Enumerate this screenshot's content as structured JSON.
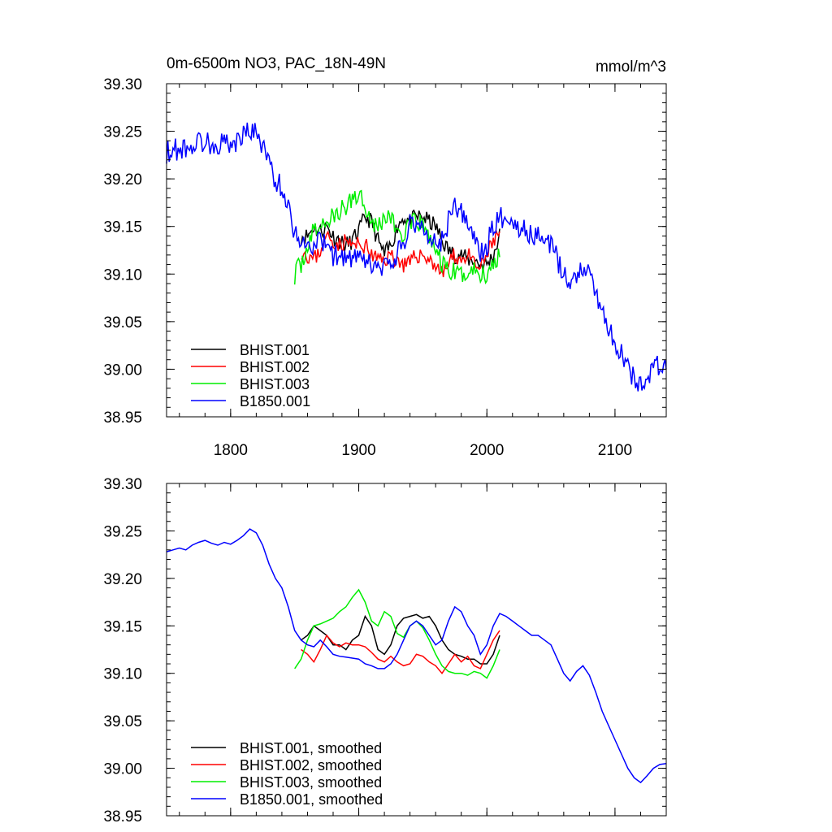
{
  "chart_data": [
    {
      "type": "line",
      "title": "0m-6500m NO3, PAC_18N-49N",
      "units_label": "mmol/m^3",
      "xlabel": "",
      "ylabel": "",
      "xlim": [
        1750,
        2140
      ],
      "ylim": [
        38.95,
        39.3
      ],
      "x_ticks": [
        1800,
        1900,
        2000,
        2100
      ],
      "x_tick_labels": [
        "1800",
        "1900",
        "2000",
        "2100"
      ],
      "y_ticks": [
        38.95,
        39.0,
        39.05,
        39.1,
        39.15,
        39.2,
        39.25,
        39.3
      ],
      "y_tick_labels": [
        "38.95",
        "39.00",
        "39.05",
        "39.10",
        "39.15",
        "39.20",
        "39.25",
        "39.30"
      ],
      "legend_position": "bottom-left",
      "series": [
        {
          "name": "BHIST.001",
          "color": "#000000",
          "noise": 0.009,
          "seed": 11,
          "x": [
            1855,
            1860,
            1865,
            1870,
            1875,
            1880,
            1885,
            1890,
            1895,
            1900,
            1905,
            1910,
            1915,
            1920,
            1925,
            1930,
            1935,
            1940,
            1945,
            1950,
            1955,
            1960,
            1965,
            1970,
            1975,
            1980,
            1985,
            1990,
            1995,
            2000,
            2005,
            2010
          ],
          "y": [
            39.14,
            39.14,
            39.15,
            39.145,
            39.15,
            39.14,
            39.135,
            39.13,
            39.135,
            39.145,
            39.16,
            39.155,
            39.135,
            39.12,
            39.13,
            39.15,
            39.16,
            39.155,
            39.16,
            39.16,
            39.155,
            39.15,
            39.135,
            39.125,
            39.12,
            39.12,
            39.115,
            39.115,
            39.11,
            39.11,
            39.12,
            39.14
          ]
        },
        {
          "name": "BHIST.002",
          "color": "#ff0000",
          "noise": 0.009,
          "seed": 23,
          "x": [
            1855,
            1860,
            1865,
            1870,
            1875,
            1880,
            1885,
            1890,
            1895,
            1900,
            1905,
            1910,
            1915,
            1920,
            1925,
            1930,
            1935,
            1940,
            1945,
            1950,
            1955,
            1960,
            1965,
            1970,
            1975,
            1980,
            1985,
            1990,
            1995,
            2000,
            2005,
            2010
          ],
          "y": [
            39.125,
            39.12,
            39.115,
            39.125,
            39.14,
            39.135,
            39.13,
            39.135,
            39.13,
            39.13,
            39.13,
            39.12,
            39.115,
            39.115,
            39.12,
            39.115,
            39.11,
            39.11,
            39.12,
            39.12,
            39.115,
            39.11,
            39.1,
            39.11,
            39.12,
            39.115,
            39.12,
            39.11,
            39.105,
            39.12,
            39.135,
            39.145
          ]
        },
        {
          "name": "BHIST.003",
          "color": "#00ee00",
          "noise": 0.011,
          "seed": 37,
          "x": [
            1850,
            1855,
            1860,
            1865,
            1870,
            1875,
            1880,
            1885,
            1890,
            1895,
            1900,
            1905,
            1910,
            1915,
            1920,
            1925,
            1930,
            1935,
            1940,
            1945,
            1950,
            1955,
            1960,
            1965,
            1970,
            1975,
            1980,
            1985,
            1990,
            1995,
            2000,
            2005,
            2010
          ],
          "y": [
            39.1,
            39.11,
            39.13,
            39.145,
            39.15,
            39.155,
            39.16,
            39.165,
            39.17,
            39.18,
            39.185,
            39.175,
            39.155,
            39.15,
            39.16,
            39.16,
            39.145,
            39.14,
            39.15,
            39.155,
            39.15,
            39.14,
            39.125,
            39.11,
            39.105,
            39.1,
            39.1,
            39.1,
            39.105,
            39.1,
            39.1,
            39.11,
            39.125
          ]
        },
        {
          "name": "B1850.001",
          "color": "#0000ff",
          "noise": 0.012,
          "seed": 53,
          "x": [
            1750,
            1755,
            1760,
            1765,
            1770,
            1775,
            1780,
            1785,
            1790,
            1795,
            1800,
            1805,
            1810,
            1815,
            1820,
            1825,
            1830,
            1835,
            1840,
            1845,
            1850,
            1855,
            1860,
            1865,
            1870,
            1875,
            1880,
            1885,
            1890,
            1895,
            1900,
            1905,
            1910,
            1915,
            1920,
            1925,
            1930,
            1935,
            1940,
            1945,
            1950,
            1955,
            1960,
            1965,
            1970,
            1975,
            1980,
            1985,
            1990,
            1995,
            2000,
            2005,
            2010,
            2015,
            2020,
            2025,
            2030,
            2035,
            2040,
            2045,
            2050,
            2055,
            2060,
            2065,
            2070,
            2075,
            2080,
            2085,
            2090,
            2095,
            2100,
            2105,
            2110,
            2115,
            2120,
            2125,
            2130,
            2135,
            2140
          ],
          "y": [
            39.228,
            39.23,
            39.232,
            39.233,
            39.235,
            39.238,
            39.24,
            39.237,
            39.236,
            39.238,
            39.236,
            39.24,
            39.245,
            39.252,
            39.248,
            39.235,
            39.215,
            39.2,
            39.19,
            39.17,
            39.145,
            39.135,
            39.13,
            39.13,
            39.135,
            39.128,
            39.12,
            39.118,
            39.117,
            39.116,
            39.115,
            39.11,
            39.11,
            39.105,
            39.105,
            39.11,
            39.12,
            39.135,
            39.15,
            39.155,
            39.15,
            39.14,
            39.13,
            39.135,
            39.155,
            39.17,
            39.165,
            39.15,
            39.14,
            39.12,
            39.13,
            39.15,
            39.16,
            39.16,
            39.155,
            39.15,
            39.145,
            39.14,
            39.14,
            39.135,
            39.13,
            39.115,
            39.1,
            39.09,
            39.1,
            39.11,
            39.1,
            39.08,
            39.06,
            39.045,
            39.03,
            39.015,
            39.0,
            38.99,
            38.985,
            38.99,
            39.0,
            39.005,
            39.0
          ]
        }
      ]
    },
    {
      "type": "line",
      "title": "",
      "xlabel": "",
      "ylabel": "",
      "xlim": [
        1750,
        2140
      ],
      "ylim": [
        38.95,
        39.3
      ],
      "x_ticks": [
        1800,
        1900,
        2000,
        2100
      ],
      "y_ticks": [
        38.95,
        39.0,
        39.05,
        39.1,
        39.15,
        39.2,
        39.25,
        39.3
      ],
      "y_tick_labels": [
        "38.95",
        "39.00",
        "39.05",
        "39.10",
        "39.15",
        "39.20",
        "39.25",
        "39.30"
      ],
      "legend_position": "bottom-left",
      "series": [
        {
          "name": "BHIST.001, smoothed",
          "color": "#000000",
          "x": [
            1855,
            1860,
            1865,
            1870,
            1875,
            1880,
            1885,
            1890,
            1895,
            1900,
            1905,
            1910,
            1915,
            1920,
            1925,
            1930,
            1935,
            1940,
            1945,
            1950,
            1955,
            1960,
            1965,
            1970,
            1975,
            1980,
            1985,
            1990,
            1995,
            2000,
            2005,
            2010
          ],
          "y": [
            39.135,
            39.14,
            39.15,
            39.145,
            39.14,
            39.13,
            39.13,
            39.125,
            39.135,
            39.14,
            39.16,
            39.15,
            39.125,
            39.12,
            39.13,
            39.15,
            39.158,
            39.16,
            39.162,
            39.158,
            39.16,
            39.15,
            39.135,
            39.125,
            39.12,
            39.118,
            39.115,
            39.115,
            39.11,
            39.11,
            39.12,
            39.14
          ]
        },
        {
          "name": "BHIST.002, smoothed",
          "color": "#ff0000",
          "x": [
            1855,
            1860,
            1865,
            1870,
            1875,
            1880,
            1885,
            1890,
            1895,
            1900,
            1905,
            1910,
            1915,
            1920,
            1925,
            1930,
            1935,
            1940,
            1945,
            1950,
            1955,
            1960,
            1965,
            1970,
            1975,
            1980,
            1985,
            1990,
            1995,
            2000,
            2005,
            2010
          ],
          "y": [
            39.125,
            39.12,
            39.112,
            39.125,
            39.14,
            39.132,
            39.128,
            39.132,
            39.13,
            39.13,
            39.128,
            39.122,
            39.115,
            39.112,
            39.118,
            39.112,
            39.108,
            39.11,
            39.12,
            39.118,
            39.112,
            39.108,
            39.1,
            39.11,
            39.12,
            39.112,
            39.118,
            39.108,
            39.105,
            39.12,
            39.135,
            39.145
          ]
        },
        {
          "name": "BHIST.003, smoothed",
          "color": "#00ee00",
          "x": [
            1850,
            1855,
            1860,
            1865,
            1870,
            1875,
            1880,
            1885,
            1890,
            1895,
            1900,
            1905,
            1910,
            1915,
            1920,
            1925,
            1930,
            1935,
            1940,
            1945,
            1950,
            1955,
            1960,
            1965,
            1970,
            1975,
            1980,
            1985,
            1990,
            1995,
            2000,
            2005,
            2010
          ],
          "y": [
            39.105,
            39.115,
            39.135,
            39.15,
            39.152,
            39.155,
            39.158,
            39.165,
            39.17,
            39.18,
            39.188,
            39.175,
            39.155,
            39.15,
            39.165,
            39.16,
            39.142,
            39.138,
            39.15,
            39.155,
            39.148,
            39.135,
            39.12,
            39.108,
            39.102,
            39.1,
            39.1,
            39.098,
            39.102,
            39.1,
            39.095,
            39.108,
            39.125
          ]
        },
        {
          "name": "B1850.001, smoothed",
          "color": "#0000ff",
          "x": [
            1750,
            1755,
            1760,
            1765,
            1770,
            1775,
            1780,
            1785,
            1790,
            1795,
            1800,
            1805,
            1810,
            1815,
            1820,
            1825,
            1830,
            1835,
            1840,
            1845,
            1850,
            1855,
            1860,
            1865,
            1870,
            1875,
            1880,
            1885,
            1890,
            1895,
            1900,
            1905,
            1910,
            1915,
            1920,
            1925,
            1930,
            1935,
            1940,
            1945,
            1950,
            1955,
            1960,
            1965,
            1970,
            1975,
            1980,
            1985,
            1990,
            1995,
            2000,
            2005,
            2010,
            2015,
            2020,
            2025,
            2030,
            2035,
            2040,
            2045,
            2050,
            2055,
            2060,
            2065,
            2070,
            2075,
            2080,
            2085,
            2090,
            2095,
            2100,
            2105,
            2110,
            2115,
            2120,
            2125,
            2130,
            2135,
            2140
          ],
          "y": [
            39.228,
            39.23,
            39.232,
            39.23,
            39.235,
            39.238,
            39.24,
            39.237,
            39.235,
            39.238,
            39.236,
            39.24,
            39.245,
            39.252,
            39.248,
            39.235,
            39.215,
            39.2,
            39.19,
            39.17,
            39.145,
            39.135,
            39.13,
            39.128,
            39.135,
            39.128,
            39.12,
            39.118,
            39.117,
            39.116,
            39.115,
            39.11,
            39.108,
            39.105,
            39.105,
            39.11,
            39.12,
            39.135,
            39.15,
            39.155,
            39.15,
            39.14,
            39.13,
            39.135,
            39.155,
            39.17,
            39.165,
            39.15,
            39.14,
            39.12,
            39.13,
            39.15,
            39.163,
            39.16,
            39.155,
            39.15,
            39.145,
            39.14,
            39.14,
            39.135,
            39.13,
            39.115,
            39.1,
            39.092,
            39.102,
            39.108,
            39.098,
            39.08,
            39.06,
            39.045,
            39.03,
            39.015,
            39.0,
            38.99,
            38.985,
            38.992,
            39.0,
            39.004,
            39.005
          ]
        }
      ]
    }
  ]
}
